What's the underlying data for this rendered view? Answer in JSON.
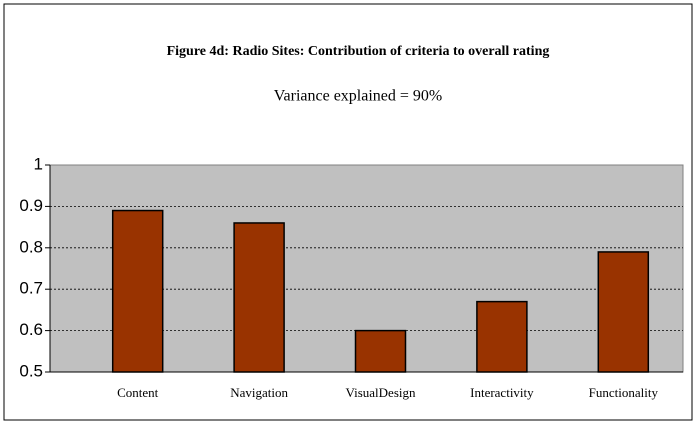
{
  "chart_data": {
    "type": "bar",
    "title": "Figure 4d: Radio Sites: Contribution of criteria to overall rating",
    "subtitle": "Variance explained = 90%",
    "categories": [
      "Content",
      "Navigation",
      "VisualDesign",
      "Interactivity",
      "Functionality"
    ],
    "values": [
      0.89,
      0.86,
      0.6,
      0.67,
      0.79
    ],
    "color": "#993300",
    "ylim": [
      0.5,
      1
    ],
    "yticks": [
      0.5,
      0.6,
      0.7,
      0.8,
      0.9,
      1
    ],
    "grid": true
  }
}
